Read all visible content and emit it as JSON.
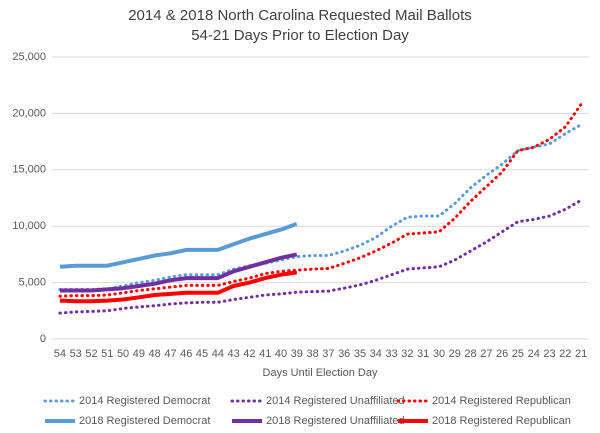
{
  "chart_data": {
    "type": "line",
    "title": "2014 & 2018 North Carolina Requested Mail Ballots",
    "subtitle": "54-21 Days Prior to Election Day",
    "x_label": "Days Until Election Day",
    "categories": [
      "54",
      "53",
      "52",
      "51",
      "50",
      "49",
      "48",
      "47",
      "46",
      "45",
      "44",
      "43",
      "42",
      "41",
      "40",
      "39",
      "38",
      "37",
      "36",
      "35",
      "34",
      "33",
      "32",
      "31",
      "30",
      "29",
      "28",
      "27",
      "26",
      "25",
      "24",
      "23",
      "22",
      "21"
    ],
    "ylim": [
      0,
      25000
    ],
    "yticks": [
      0,
      {
        "value": 5000,
        "label": "5,000"
      },
      {
        "value": 10000,
        "label": "10,000"
      },
      {
        "value": 15000,
        "label": "15,000"
      },
      {
        "value": 20000,
        "label": "20,000"
      },
      {
        "value": 25000,
        "label": "25,000"
      }
    ],
    "grid": true,
    "legend": "bottom",
    "series": [
      {
        "name": "2014 Registered Democrat",
        "color": "#5b9bd5",
        "style": "dotted",
        "values": [
          4400,
          4400,
          4400,
          4450,
          4700,
          5000,
          5200,
          5500,
          5700,
          5700,
          5700,
          6200,
          6500,
          6700,
          7000,
          7300,
          7400,
          7400,
          7800,
          8300,
          9000,
          10000,
          10800,
          10900,
          10900,
          12000,
          13400,
          14500,
          15500,
          16700,
          17000,
          17300,
          18200,
          19000
        ]
      },
      {
        "name": "2014 Registered Unaffiliated",
        "color": "#7030a0",
        "style": "dotted",
        "values": [
          2300,
          2400,
          2450,
          2500,
          2700,
          2850,
          2950,
          3100,
          3200,
          3250,
          3250,
          3500,
          3700,
          3900,
          4000,
          4150,
          4200,
          4250,
          4500,
          4800,
          5200,
          5700,
          6200,
          6300,
          6400,
          7000,
          7800,
          8600,
          9500,
          10400,
          10600,
          10900,
          11500,
          12300
        ]
      },
      {
        "name": "2014 Registered Republican",
        "color": "#ff0000",
        "style": "dotted",
        "values": [
          3800,
          3850,
          3850,
          3900,
          4100,
          4300,
          4450,
          4600,
          4750,
          4750,
          4750,
          5100,
          5400,
          5800,
          6000,
          6100,
          6200,
          6250,
          6700,
          7200,
          7800,
          8500,
          9300,
          9400,
          9500,
          10700,
          12200,
          13500,
          14800,
          16700,
          17000,
          17700,
          18800,
          20800
        ]
      },
      {
        "name": "2018 Registered Democrat",
        "color": "#5b9bd5",
        "style": "solid",
        "values": [
          6400,
          6500,
          6500,
          6500,
          6800,
          7100,
          7400,
          7600,
          7900,
          7900,
          7900,
          8400,
          8900,
          9300,
          9700,
          10200,
          null,
          null,
          null,
          null,
          null,
          null,
          null,
          null,
          null,
          null,
          null,
          null,
          null,
          null,
          null,
          null,
          null,
          null
        ]
      },
      {
        "name": "2018 Registered Unaffiliated",
        "color": "#7030a0",
        "style": "solid",
        "values": [
          4300,
          4300,
          4300,
          4400,
          4500,
          4700,
          4900,
          5200,
          5400,
          5400,
          5400,
          6000,
          6400,
          6800,
          7200,
          7500,
          null,
          null,
          null,
          null,
          null,
          null,
          null,
          null,
          null,
          null,
          null,
          null,
          null,
          null,
          null,
          null,
          null,
          null
        ]
      },
      {
        "name": "2018 Registered Republican",
        "color": "#ff0000",
        "style": "solid",
        "values": [
          3400,
          3350,
          3350,
          3400,
          3500,
          3700,
          3900,
          4000,
          4100,
          4100,
          4100,
          4700,
          5000,
          5400,
          5700,
          5900,
          null,
          null,
          null,
          null,
          null,
          null,
          null,
          null,
          null,
          null,
          null,
          null,
          null,
          null,
          null,
          null,
          null,
          null
        ]
      }
    ]
  }
}
